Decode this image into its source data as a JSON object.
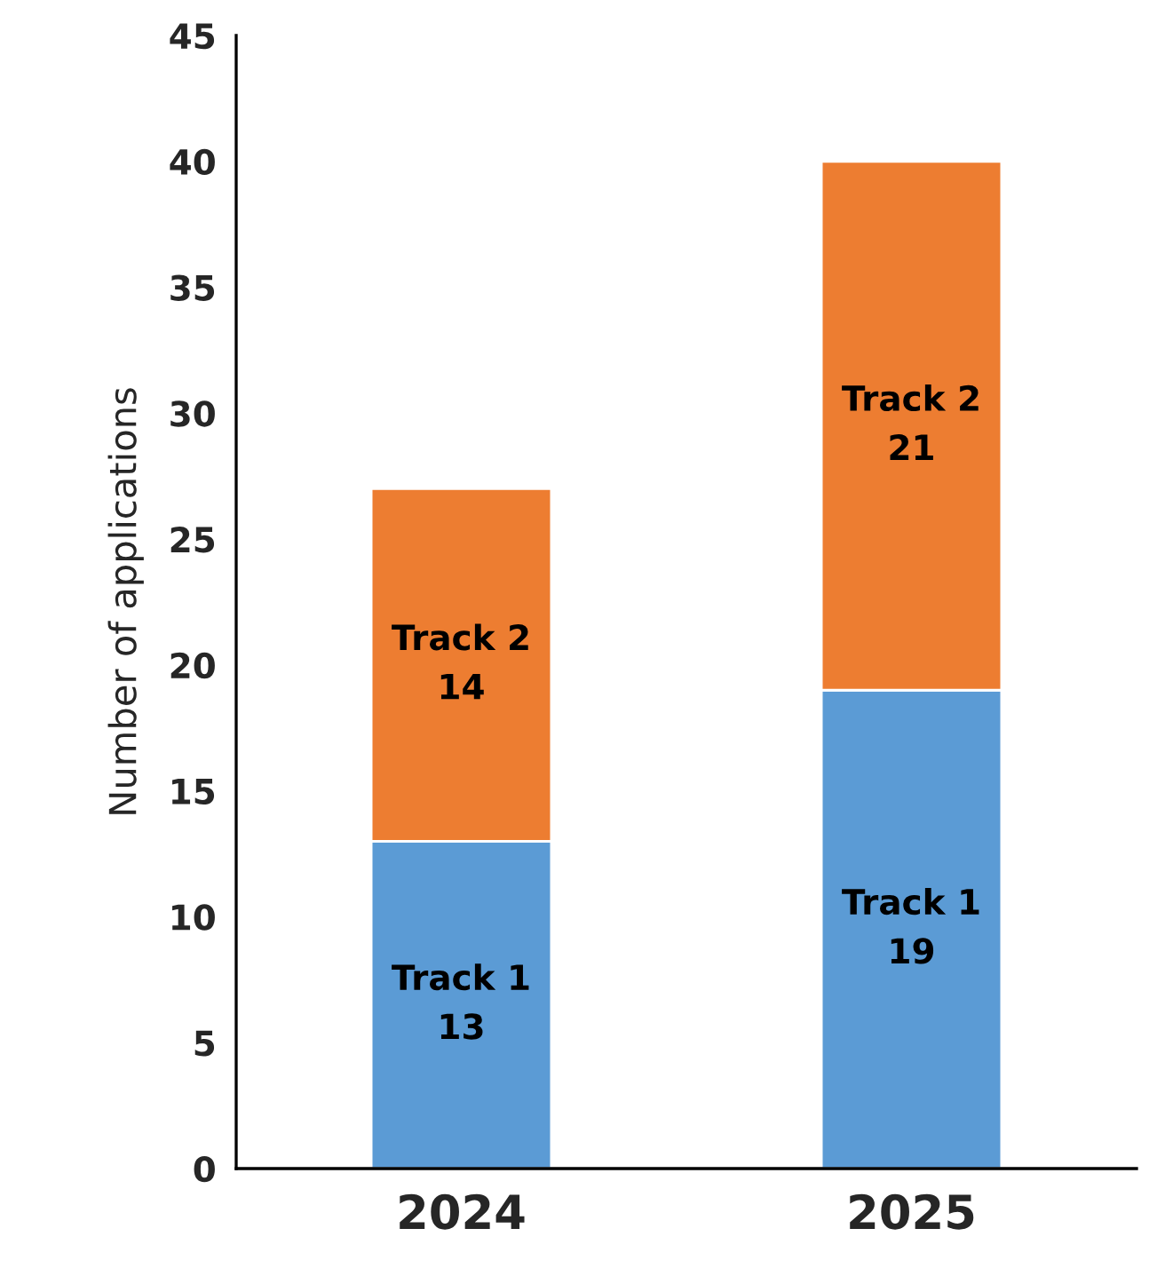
{
  "chart_data": {
    "type": "bar",
    "stacked": true,
    "ylabel": "Number of applications",
    "categories": [
      "2024",
      "2025"
    ],
    "series": [
      {
        "name": "Track 1",
        "color": "#5b9bd5",
        "values": [
          13,
          19
        ]
      },
      {
        "name": "Track 2",
        "color": "#ed7d31",
        "values": [
          14,
          21
        ]
      }
    ],
    "ylim": [
      0,
      45
    ],
    "yticks": [
      0,
      5,
      10,
      15,
      20,
      25,
      30,
      35,
      40,
      45
    ],
    "data_labels": true,
    "grid": false,
    "legend": false
  }
}
